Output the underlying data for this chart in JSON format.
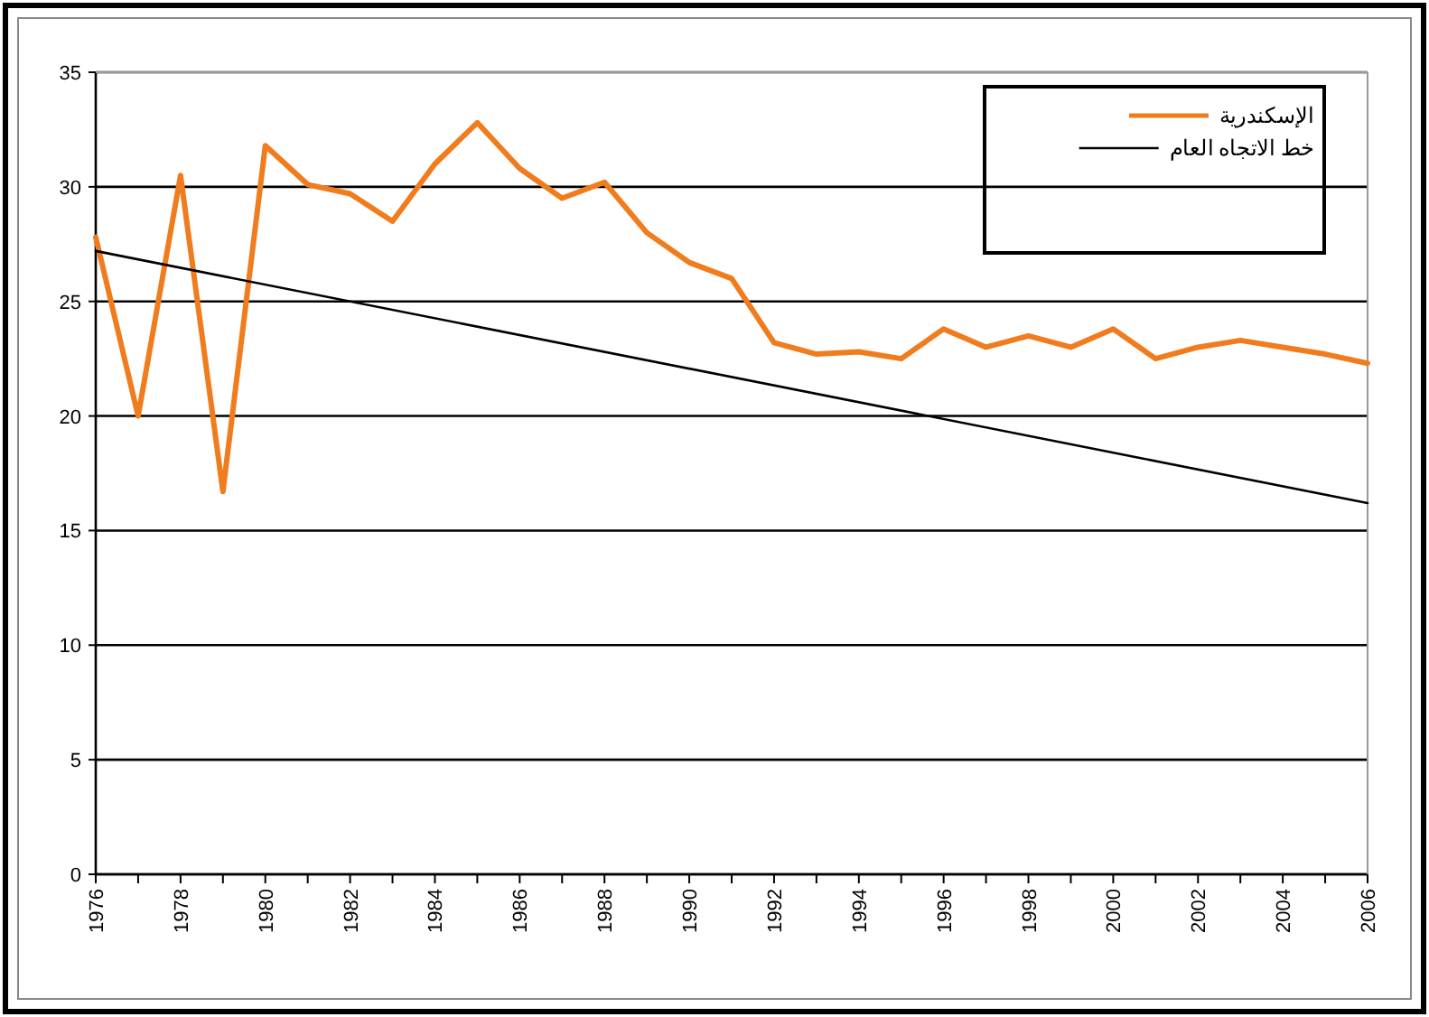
{
  "chart_data": {
    "type": "line",
    "x": [
      1976,
      1977,
      1978,
      1979,
      1980,
      1981,
      1982,
      1983,
      1984,
      1985,
      1986,
      1987,
      1988,
      1989,
      1990,
      1991,
      1992,
      1993,
      1994,
      1995,
      1996,
      1997,
      1998,
      1999,
      2000,
      2001,
      2002,
      2003,
      2004,
      2005,
      2006
    ],
    "series": [
      {
        "name": "الإسكندرية",
        "color": "#f07c1e",
        "values": [
          27.8,
          20.0,
          30.5,
          16.7,
          31.8,
          30.1,
          29.7,
          28.5,
          31.0,
          32.8,
          30.8,
          29.5,
          30.2,
          28.0,
          26.7,
          26.0,
          23.2,
          22.7,
          22.8,
          22.5,
          23.8,
          23.0,
          23.5,
          23.0,
          23.8,
          22.5,
          23.0,
          23.3,
          23.0,
          22.7,
          22.3
        ]
      },
      {
        "name": "خط الاتجاه العام",
        "color": "#000000",
        "type": "line",
        "x": [
          1976,
          2006
        ],
        "values": [
          27.2,
          16.2
        ]
      }
    ],
    "xlim": [
      1976,
      2006
    ],
    "ylim": [
      0,
      35
    ],
    "xticks": [
      1976,
      {
        "value": 1977,
        "label": null
      },
      1978,
      {
        "value": 1979,
        "label": null
      },
      1980,
      {
        "value": 1981,
        "label": null
      },
      1982,
      {
        "value": 1983,
        "label": null
      },
      1984,
      {
        "value": 1985,
        "label": null
      },
      1986,
      {
        "value": 1987,
        "label": null
      },
      1988,
      {
        "value": 1989,
        "label": null
      },
      1990,
      {
        "value": 1991,
        "label": null
      },
      1992,
      {
        "value": 1993,
        "label": null
      },
      1994,
      {
        "value": 1995,
        "label": null
      },
      1996,
      {
        "value": 1997,
        "label": null
      },
      1998,
      {
        "value": 1999,
        "label": null
      },
      2000,
      {
        "value": 2001,
        "label": null
      },
      2002,
      {
        "value": 2003,
        "label": null
      },
      2004,
      {
        "value": 2005,
        "label": null
      },
      2006
    ],
    "yticks": [
      0,
      5,
      10,
      15,
      20,
      25,
      30,
      35
    ],
    "grid": "y",
    "legend": "top right",
    "marker": "none",
    "line_style": "solid"
  }
}
